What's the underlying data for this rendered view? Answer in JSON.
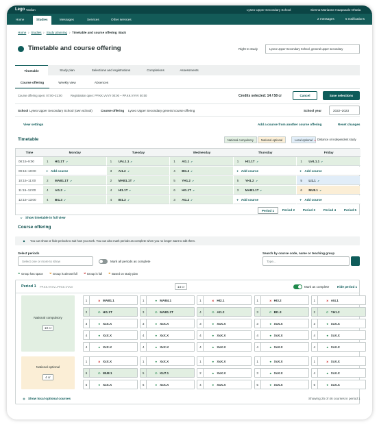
{
  "topbar": {
    "logo": "Lego",
    "app": "Vanilan",
    "school": "Lyseo Upper Secondary School",
    "user": "Sienna-Marianne Haapasalo-Ohtala"
  },
  "nav": {
    "items": [
      "Home",
      "Studies",
      "Messages",
      "Services",
      "Other services"
    ],
    "active": 1,
    "messages": "2 messages",
    "notifications": "5 notifications"
  },
  "breadcrumb": [
    "Home",
    "Studies",
    "Study planning",
    "Timetable and course offering"
  ],
  "back": "Back",
  "title": "Timetable and course offering",
  "right_to_study": {
    "label": "Right to study",
    "value": "Lyseo Upper Secondary School, general upper secondary"
  },
  "tabs": {
    "items": [
      "Timetable",
      "Study plan",
      "Selections and registrations",
      "Completions",
      "Assessments"
    ],
    "active": 0
  },
  "subtabs": {
    "items": [
      "Course offering",
      "Weekly view",
      "Absences"
    ],
    "active": 0
  },
  "status_bar": {
    "offering_open": "Course offering open: 07:00–21:00",
    "registration_open": "Registration open: PP.KK.VVVV 00:00 – PP.KK.VVVV 00:00",
    "credits": "Credits selected: 14 / 58 cr",
    "cancel": "Cancel",
    "save": "Save selections"
  },
  "context": {
    "school_label": "School",
    "school": "Lyseo Upper Secondary School (own school)",
    "offering_label": "Course offering",
    "offering": "Lyseo Upper Secondary general course offering",
    "year_label": "School year",
    "year": "2022–2023"
  },
  "actions": {
    "view_settings": "View settings",
    "add_course": "Add a course from another course offering",
    "reset": "Reset changes"
  },
  "timetable": {
    "title": "Timetable",
    "legend": [
      {
        "label": "National compulsory",
        "color": "#e2efe2"
      },
      {
        "label": "National optional",
        "color": "#fbeed6"
      },
      {
        "label": "Local optional",
        "color": "#e1edf8"
      },
      {
        "label": "Distance or independent study",
        "color": "#d9738a"
      }
    ],
    "columns": [
      "Time",
      "Monday",
      "Tuesday",
      "Wednesday",
      "Thursday",
      "Friday"
    ],
    "rows": [
      {
        "time": "08:15–9:00",
        "cells": [
          {
            "group": "1",
            "code": "HI1.1T",
            "color": "#e2efe2"
          },
          {
            "group": "1",
            "code": "UAL1.1",
            "color": "#e2efe2"
          },
          {
            "group": "1",
            "code": "AI1.1",
            "color": "#e2efe2"
          },
          {
            "group": "1",
            "code": "HI1.1T",
            "color": "#e2efe2"
          },
          {
            "group": "1",
            "code": "UAL1.1",
            "color": "#e2efe2"
          }
        ]
      },
      {
        "time": "09:15–10:00",
        "cells": [
          {
            "text": "Add course"
          },
          {
            "group": "3",
            "code": "AI1.2",
            "color": "#e2efe2"
          },
          {
            "group": "4",
            "code": "BI1.3",
            "color": "#e2efe2"
          },
          {
            "text": "Add course"
          },
          {
            "text": "Add course"
          }
        ]
      },
      {
        "time": "10:15–11:00",
        "cells": [
          {
            "group": "2",
            "code": "MAB1.1T",
            "color": "#e2efe2"
          },
          {
            "group": "2",
            "code": "MAB1.1T",
            "color": "#e2efe2"
          },
          {
            "group": "5",
            "code": "YH1.2",
            "color": "#e2efe2"
          },
          {
            "group": "5",
            "code": "YH1.2",
            "color": "#e2efe2"
          },
          {
            "group": "5",
            "code": "LI1.1",
            "color": "#e1edf8"
          }
        ]
      },
      {
        "time": "11:15–12:00",
        "cells": [
          {
            "group": "4",
            "code": "AI1.2",
            "color": "#e2efe2"
          },
          {
            "group": "4",
            "code": "HI1.1T",
            "color": "#e2efe2"
          },
          {
            "group": "6",
            "code": "HI1.1T",
            "color": "#e2efe2"
          },
          {
            "group": "3",
            "code": "MAB1.1T",
            "color": "#e2efe2"
          },
          {
            "group": "6",
            "code": "MU8.1",
            "color": "#fbeed6"
          }
        ]
      },
      {
        "time": "12:15–13:00",
        "cells": [
          {
            "group": "4",
            "code": "BI1.3",
            "color": "#e2efe2"
          },
          {
            "group": "4",
            "code": "BI1.3",
            "color": "#e2efe2"
          },
          {
            "group": "3",
            "code": "AI1.2",
            "color": "#e2efe2"
          },
          {
            "text": "Add course"
          },
          {
            "text": "Add course"
          }
        ]
      }
    ],
    "full_view": "Show timetable in full view",
    "periods": [
      "Period 1",
      "Period 2",
      "Period 3",
      "Period 4",
      "Period 5"
    ],
    "active_period": 0
  },
  "course_offering": {
    "title": "Course offering",
    "info": "You can show or hide periods to suit how you work. You can also mark periods as complete when you no longer want to edit them.",
    "select_label": "Select periods",
    "select_placeholder": "Select one or more to show",
    "mark_all": "Mark all periods as complete",
    "search_label": "Search by course code, name or teaching group",
    "search_placeholder": "Type...",
    "legend": [
      {
        "label": "Group has space",
        "status": "space"
      },
      {
        "label": "Group is almost full",
        "status": "almost"
      },
      {
        "label": "Group is full",
        "status": "full"
      },
      {
        "label": "Based on study plan",
        "status": "plan"
      }
    ],
    "period": {
      "title": "Period 1",
      "dates": "PP.KK.VVVV–PP.KK.VVVV",
      "credits": "14 cr",
      "mark_complete": "Mark as complete",
      "hide": "Hide period 1",
      "groups": [
        {
          "name": "National compulsory",
          "credits": "10 cr",
          "color": "#e2efe2",
          "rows": [
            [
              {
                "group": "1",
                "code": "MAB1.1",
                "status": "full"
              },
              {
                "group": "1",
                "code": "MAB4.1",
                "status": "space"
              },
              {
                "group": "1",
                "code": "HI2.1",
                "status": "full"
              },
              {
                "group": "1",
                "code": "HI3.2",
                "status": "full"
              },
              {
                "group": "1",
                "code": "AI4.1",
                "status": "full"
              }
            ],
            [
              {
                "group": "2",
                "code": "HI1.1T",
                "status": "selected"
              },
              {
                "group": "3",
                "code": "MAB1.1T",
                "status": "selected"
              },
              {
                "group": "4",
                "code": "AI1.2",
                "status": "selected"
              },
              {
                "group": "3",
                "code": "BI1.3",
                "status": "selected"
              },
              {
                "group": "2",
                "code": "YH1.2",
                "status": "selected"
              }
            ],
            [
              {
                "group": "3",
                "code": "XxX.X",
                "status": "space"
              },
              {
                "group": "3",
                "code": "XxX.X",
                "status": "space"
              },
              {
                "group": "3",
                "code": "XxX.X",
                "status": "space"
              },
              {
                "group": "3",
                "code": "XxX.X",
                "status": "space"
              },
              {
                "group": "3",
                "code": "XxX.X",
                "status": "space"
              }
            ],
            [
              {
                "group": "4",
                "code": "XxX.X",
                "status": "space"
              },
              {
                "group": "4",
                "code": "XxX.X",
                "status": "space"
              },
              {
                "group": "4",
                "code": "XxX.X",
                "status": "space"
              },
              {
                "group": "4",
                "code": "XxX.X",
                "status": "space"
              },
              {
                "group": "4",
                "code": "XxX.X",
                "status": "space"
              }
            ],
            [
              {
                "group": "4",
                "code": "XxX.X",
                "status": "space"
              },
              {
                "group": "4",
                "code": "XxX.X",
                "status": "space"
              },
              {
                "group": "4",
                "code": "XxX.X",
                "status": "space"
              },
              {
                "group": "4",
                "code": "XxX.X",
                "status": "space"
              },
              {
                "group": "4",
                "code": "XxX.X",
                "status": "space"
              }
            ]
          ]
        },
        {
          "name": "National optional",
          "credits": "4 cr",
          "color": "#fbeed6",
          "rows": [
            [
              {
                "group": "1",
                "code": "XxX.X",
                "status": "full"
              },
              {
                "group": "1",
                "code": "XxX.X",
                "status": "space"
              },
              {
                "group": "1",
                "code": "XxX.X",
                "status": "space"
              },
              {
                "group": "1",
                "code": "XxX.X",
                "status": "space"
              },
              {
                "group": "1",
                "code": "XxX.X",
                "status": "full"
              }
            ],
            [
              {
                "group": "6",
                "code": "MU8.1",
                "status": "selected"
              },
              {
                "group": "5",
                "code": "KU7.1",
                "status": "selected"
              },
              {
                "group": "2",
                "code": "XxX.X",
                "status": "space"
              },
              {
                "group": "3",
                "code": "XxX.X",
                "status": "space"
              },
              {
                "group": "4",
                "code": "XxX.X",
                "status": "space"
              }
            ],
            [
              {
                "group": "5",
                "code": "XxX.X",
                "status": "space"
              },
              {
                "group": "6",
                "code": "XxX.X",
                "status": "space"
              },
              {
                "group": "4",
                "code": "XxX.X",
                "status": "space"
              },
              {
                "group": "5",
                "code": "XxX.X",
                "status": "space"
              },
              {
                "group": "6",
                "code": "XxX.X",
                "status": "space"
              }
            ]
          ]
        }
      ],
      "show_local": "Show local optional courses",
      "showing": "Showing 25 of 46 courses in period 1"
    }
  }
}
